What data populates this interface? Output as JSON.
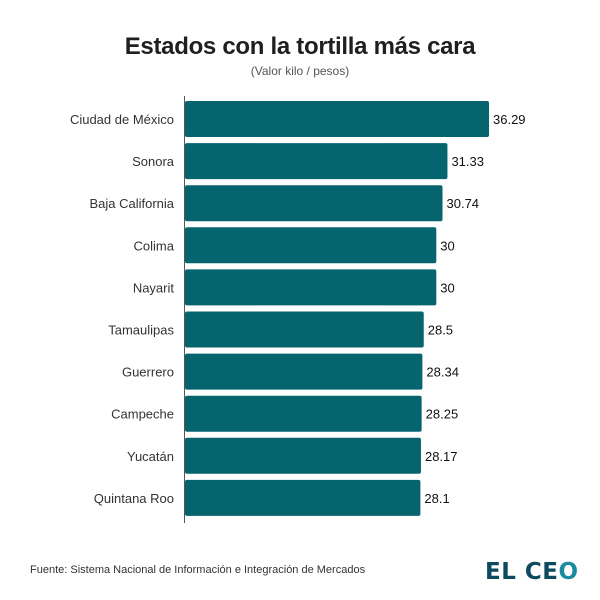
{
  "chart_data": {
    "type": "bar",
    "orientation": "horizontal",
    "title": "Estados con la tortilla más cara",
    "subtitle": "(Valor kilo / pesos)",
    "xlabel": "",
    "ylabel": "",
    "categories": [
      "Ciudad de México",
      "Sonora",
      "Baja California",
      "Colima",
      "Nayarit",
      "Tamaulipas",
      "Guerrero",
      "Campeche",
      "Yucatán",
      "Quintana Roo"
    ],
    "values": [
      36.29,
      31.33,
      30.74,
      30,
      30,
      28.5,
      28.34,
      28.25,
      28.17,
      28.1
    ],
    "value_labels": [
      "36.29",
      "31.33",
      "30.74",
      "30",
      "30",
      "28.5",
      "28.34",
      "28.25",
      "28.17",
      "28.1"
    ],
    "xlim": [
      0,
      36.29
    ],
    "grid": false,
    "bar_color": "#06646f"
  },
  "footer": {
    "source": "Fuente: Sistema Nacional de Información e Integración de Mercados",
    "logo_text_main": "EL CE",
    "logo_text_o": "O"
  }
}
